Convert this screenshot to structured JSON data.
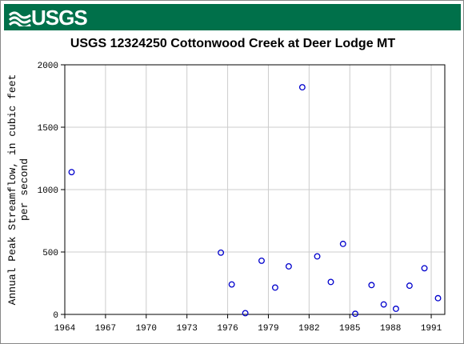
{
  "banner": {
    "logo_text": "USGS",
    "brand_color": "#00704a"
  },
  "chart_data": {
    "type": "scatter",
    "title": "USGS 12324250 Cottonwood Creek at Deer Lodge MT",
    "xlabel": "",
    "ylabel": "Annual Peak Streamflow, in cubic feet per second",
    "ylabel_lines": [
      "Annual Peak Streamflow, in cubic feet",
      "per second"
    ],
    "xlim": [
      1964,
      1992
    ],
    "ylim": [
      0,
      2000
    ],
    "x_ticks": [
      1964,
      1967,
      1970,
      1973,
      1976,
      1979,
      1982,
      1985,
      1988,
      1991
    ],
    "x_tick_labels": [
      "1964",
      "1967",
      "1970",
      "1973",
      "1976",
      "1979",
      "1982",
      "1985",
      "1988",
      "1991"
    ],
    "y_ticks": [
      0,
      500,
      1000,
      1500,
      2000
    ],
    "y_tick_labels": [
      "0",
      "500",
      "1000",
      "1500",
      "2000"
    ],
    "grid": true,
    "marker_color": "#0000cc",
    "series": [
      {
        "x": [
          1964.5,
          1975.5,
          1976.3,
          1977.3,
          1978.5,
          1979.5,
          1980.5,
          1981.5,
          1982.6,
          1983.6,
          1984.5,
          1985.4,
          1986.6,
          1987.5,
          1988.4,
          1989.4,
          1990.5,
          1991.5
        ],
        "y": [
          1140,
          495,
          240,
          10,
          430,
          215,
          385,
          1820,
          465,
          260,
          565,
          5,
          235,
          80,
          45,
          230,
          370,
          130
        ]
      }
    ]
  }
}
